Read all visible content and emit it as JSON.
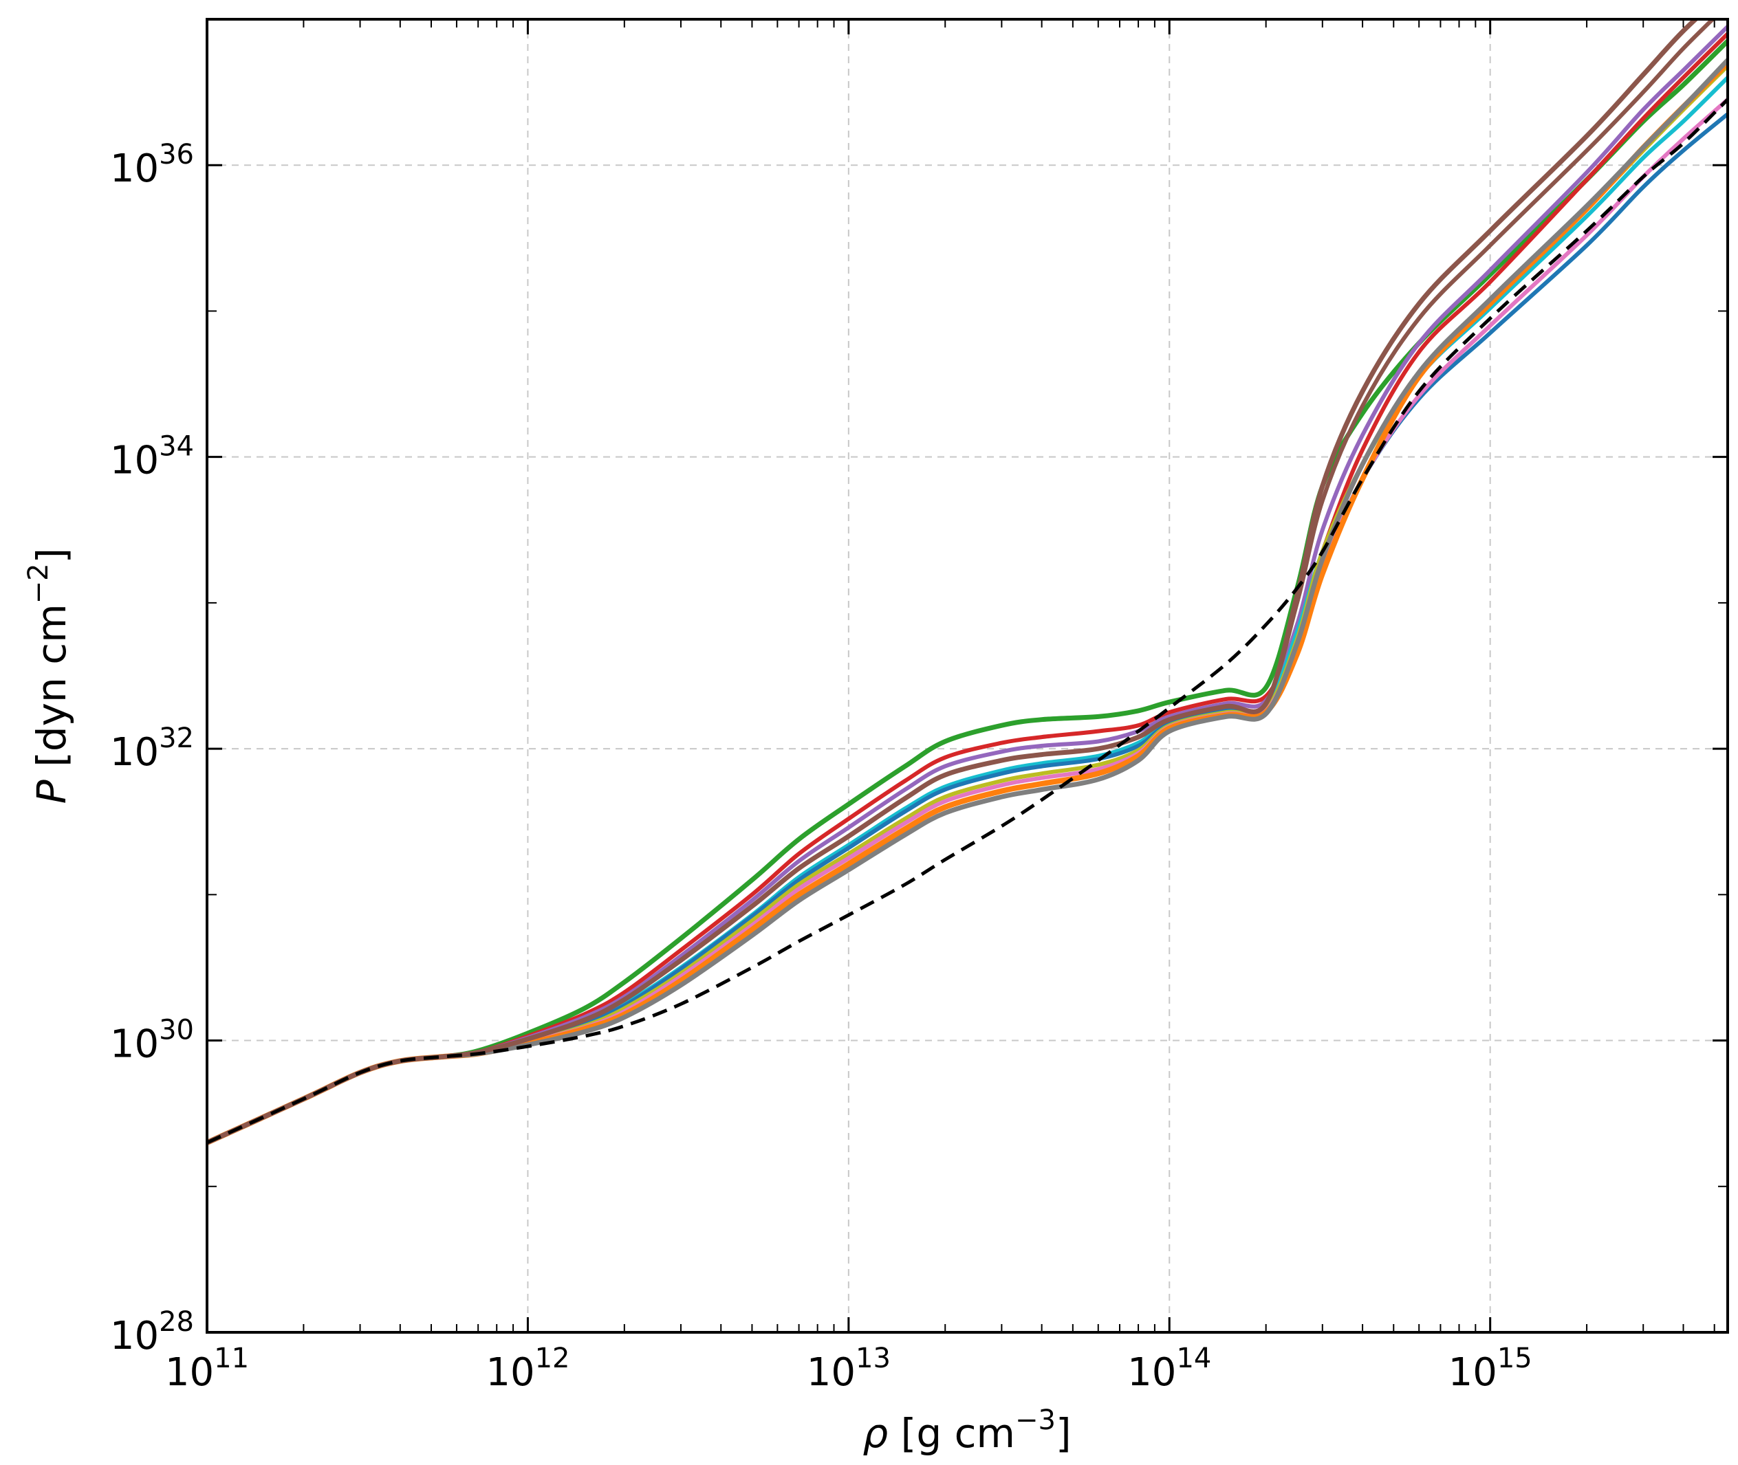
{
  "chart_data": {
    "type": "line",
    "title": "",
    "xlabel": {
      "symbol": "ρ",
      "text": " [g cm",
      "sup": "−3",
      "close": "]"
    },
    "ylabel": {
      "symbol": "P",
      "text": " [dyn cm",
      "sup": "−2",
      "close": "]"
    },
    "xscale": "log",
    "yscale": "log",
    "xlim": [
      100000000000.0,
      5500000000000000.0
    ],
    "ylim": [
      1e+28,
      1e+37
    ],
    "grid": true,
    "legend": "none",
    "x_ticks": [
      {
        "base": "10",
        "exp": "11",
        "value": 100000000000.0
      },
      {
        "base": "10",
        "exp": "12",
        "value": 1000000000000.0
      },
      {
        "base": "10",
        "exp": "13",
        "value": 10000000000000.0
      },
      {
        "base": "10",
        "exp": "14",
        "value": 100000000000000.0
      },
      {
        "base": "10",
        "exp": "15",
        "value": 1000000000000000.0
      }
    ],
    "y_ticks": [
      {
        "base": "10",
        "exp": "28",
        "value": 1e+28
      },
      {
        "base": "10",
        "exp": "30",
        "value": 1e+30
      },
      {
        "base": "10",
        "exp": "32",
        "value": 1e+32
      },
      {
        "base": "10",
        "exp": "34",
        "value": 1e+34
      },
      {
        "base": "10",
        "exp": "36",
        "value": 1e+36
      }
    ],
    "x": [
      100000000000.0,
      200000000000.0,
      300000000000.0,
      400000000000.0,
      550000000000.0,
      700000000000.0,
      1000000000000.0,
      1500000000000.0,
      2000000000000.0,
      3000000000000.0,
      5000000000000.0,
      7000000000000.0,
      10000000000000.0,
      15000000000000.0,
      20000000000000.0,
      30000000000000.0,
      40000000000000.0,
      60000000000000.0,
      80000000000000.0,
      100000000000000.0,
      150000000000000.0,
      200000000000000.0,
      250000000000000.0,
      300000000000000.0,
      400000000000000.0,
      600000000000000.0,
      1000000000000000.0,
      2000000000000000.0,
      3000000000000000.0,
      4000000000000000.0,
      5500000000000000.0
    ],
    "series": [
      {
        "color": "#2ca02c",
        "lw": 7,
        "y_log": [
          29.3,
          29.6,
          29.78,
          29.86,
          29.89,
          29.93,
          30.05,
          30.22,
          30.4,
          30.7,
          31.1,
          31.38,
          31.62,
          31.88,
          32.05,
          32.16,
          32.2,
          32.22,
          32.26,
          32.32,
          32.4,
          32.42,
          33.1,
          33.8,
          34.3,
          34.78,
          35.25,
          35.9,
          36.3,
          36.55,
          36.85
        ]
      },
      {
        "color": "#d62728",
        "lw": 6,
        "y_log": [
          29.3,
          29.6,
          29.78,
          29.86,
          29.89,
          29.92,
          30.03,
          30.18,
          30.33,
          30.62,
          31.0,
          31.28,
          31.52,
          31.78,
          31.94,
          32.04,
          32.08,
          32.12,
          32.16,
          32.25,
          32.34,
          32.36,
          32.8,
          33.35,
          34.05,
          34.72,
          35.2,
          35.9,
          36.32,
          36.6,
          36.9
        ]
      },
      {
        "color": "#9467bd",
        "lw": 6,
        "y_log": [
          29.3,
          29.6,
          29.78,
          29.86,
          29.89,
          29.92,
          30.02,
          30.16,
          30.3,
          30.58,
          30.96,
          31.23,
          31.46,
          31.72,
          31.88,
          31.98,
          32.02,
          32.05,
          32.12,
          32.22,
          32.31,
          32.33,
          32.85,
          33.5,
          34.15,
          34.78,
          35.28,
          35.95,
          36.38,
          36.65,
          36.95
        ]
      },
      {
        "color": "#8c564b",
        "lw": 6,
        "y_log": [
          29.3,
          29.6,
          29.78,
          29.86,
          29.89,
          29.92,
          30.01,
          30.14,
          30.28,
          30.55,
          30.92,
          31.18,
          31.4,
          31.66,
          31.82,
          31.92,
          31.96,
          32.0,
          32.08,
          32.2,
          32.29,
          32.31,
          33.0,
          33.7,
          34.35,
          34.95,
          35.45,
          36.1,
          36.5,
          36.8,
          37.1
        ]
      },
      {
        "color": "#17becf",
        "lw": 6,
        "y_log": [
          29.3,
          29.6,
          29.78,
          29.86,
          29.89,
          29.92,
          30.0,
          30.12,
          30.25,
          30.5,
          30.86,
          31.12,
          31.34,
          31.59,
          31.74,
          31.85,
          31.9,
          31.95,
          32.04,
          32.18,
          32.27,
          32.29,
          32.8,
          33.35,
          33.95,
          34.55,
          35.02,
          35.65,
          36.05,
          36.3,
          36.6
        ]
      },
      {
        "color": "#1f77b4",
        "lw": 6,
        "y_log": [
          29.3,
          29.6,
          29.78,
          29.86,
          29.89,
          29.92,
          30.0,
          30.12,
          30.24,
          30.49,
          30.85,
          31.1,
          31.32,
          31.57,
          31.72,
          31.83,
          31.88,
          31.93,
          32.02,
          32.17,
          32.26,
          32.28,
          32.7,
          33.25,
          33.85,
          34.4,
          34.85,
          35.45,
          35.85,
          36.1,
          36.35
        ]
      },
      {
        "color": "#bcbd22",
        "lw": 6,
        "y_log": [
          29.3,
          29.6,
          29.78,
          29.86,
          29.89,
          29.92,
          29.99,
          30.1,
          30.22,
          30.46,
          30.82,
          31.07,
          31.28,
          31.52,
          31.67,
          31.78,
          31.83,
          31.89,
          31.99,
          32.16,
          32.25,
          32.27,
          32.75,
          33.35,
          33.95,
          34.55,
          35.05,
          35.7,
          36.1,
          36.38,
          36.68
        ]
      },
      {
        "color": "#e377c2",
        "lw": 6,
        "y_log": [
          29.3,
          29.6,
          29.78,
          29.86,
          29.89,
          29.92,
          29.99,
          30.09,
          30.2,
          30.44,
          30.79,
          31.04,
          31.25,
          31.49,
          31.64,
          31.75,
          31.8,
          31.86,
          31.97,
          32.15,
          32.24,
          32.26,
          32.7,
          33.25,
          33.85,
          34.42,
          34.9,
          35.52,
          35.92,
          36.18,
          36.45
        ]
      },
      {
        "color": "#ff7f0e",
        "lw": 8,
        "y_log": [
          29.3,
          29.6,
          29.78,
          29.86,
          29.89,
          29.91,
          29.98,
          30.08,
          30.18,
          30.41,
          30.76,
          31.0,
          31.21,
          31.45,
          31.6,
          31.71,
          31.76,
          31.83,
          31.95,
          32.14,
          32.23,
          32.25,
          32.65,
          33.2,
          33.85,
          34.55,
          35.05,
          35.7,
          36.12,
          36.4,
          36.7
        ]
      },
      {
        "color": "#7f7f7f",
        "lw": 7,
        "y_log": [
          29.3,
          29.6,
          29.78,
          29.86,
          29.89,
          29.91,
          29.97,
          30.06,
          30.16,
          30.38,
          30.72,
          30.96,
          31.17,
          31.41,
          31.56,
          31.67,
          31.72,
          31.79,
          31.92,
          32.12,
          32.22,
          32.24,
          32.72,
          33.3,
          33.95,
          34.58,
          35.08,
          35.72,
          36.12,
          36.4,
          36.72
        ]
      },
      {
        "color": "#8c564b",
        "lw": 7,
        "y_log": [
          29.3,
          29.6,
          29.78,
          29.86,
          29.89,
          29.92,
          30.01,
          30.14,
          30.28,
          30.55,
          30.92,
          31.18,
          31.4,
          31.66,
          31.82,
          31.92,
          31.96,
          32.0,
          32.08,
          32.2,
          32.29,
          32.31,
          33.05,
          33.8,
          34.45,
          35.05,
          35.55,
          36.2,
          36.62,
          36.92,
          37.2
        ]
      }
    ],
    "reference": {
      "style": "dashed",
      "color": "#000000",
      "y_log": [
        29.3,
        29.6,
        29.78,
        29.86,
        29.89,
        29.91,
        29.96,
        30.03,
        30.1,
        30.25,
        30.5,
        30.68,
        30.86,
        31.07,
        31.24,
        31.47,
        31.65,
        31.92,
        32.12,
        32.28,
        32.58,
        32.85,
        33.1,
        33.35,
        33.85,
        34.45,
        34.95,
        35.55,
        35.92,
        36.15,
        36.45
      ]
    }
  }
}
